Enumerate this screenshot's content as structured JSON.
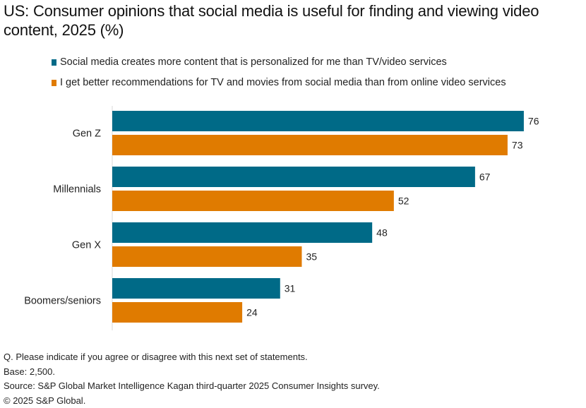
{
  "title": "US: Consumer opinions that social media is useful for finding and viewing video content, 2025 (%)",
  "chart_data": {
    "type": "bar",
    "orientation": "horizontal",
    "title": "US: Consumer opinions that social media is useful for finding and viewing video content, 2025 (%)",
    "xlabel": "",
    "ylabel": "",
    "xlim": [
      0,
      80
    ],
    "grid": false,
    "legend_position": "top",
    "categories": [
      "Gen Z",
      "Millennials",
      "Gen X",
      "Boomers/seniors"
    ],
    "series": [
      {
        "name": "Social media creates more content that is personalized for me than TV/video services",
        "color": "#006a87",
        "values": [
          76,
          67,
          48,
          31
        ]
      },
      {
        "name": "I get better recommendations for TV and movies from social media than from online video services",
        "color": "#e07b00",
        "values": [
          73,
          52,
          35,
          24
        ]
      }
    ]
  },
  "footer": {
    "question": "Q. Please indicate if you agree or disagree with this next set of statements.",
    "base": "Base: 2,500.",
    "source": "Source: S&P Global Market Intelligence Kagan third-quarter 2025 Consumer Insights survey.",
    "copyright": "© 2025 S&P Global."
  }
}
